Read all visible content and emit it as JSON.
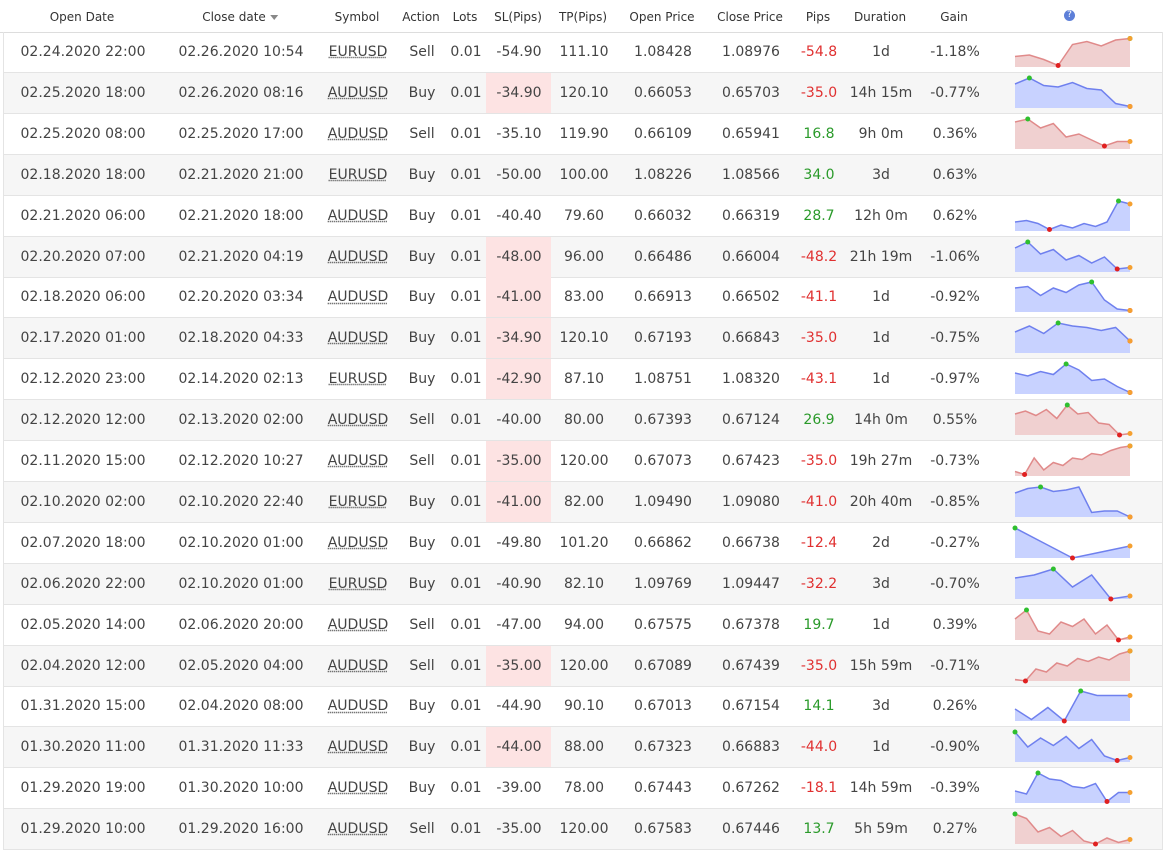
{
  "table": {
    "headers": [
      "Open Date",
      "Close date",
      "Symbol",
      "Action",
      "Lots",
      "SL(Pips)",
      "TP(Pips)",
      "Open Price",
      "Close Price",
      "Pips",
      "Duration",
      "Gain"
    ],
    "rows": [
      [
        "02.24.2020 22:00",
        "02.26.2020 10:54",
        "EURUSD",
        "Sell",
        "0.01",
        "-54.90",
        "111.10",
        "1.08428",
        "1.08976",
        "-54.8",
        "1d",
        "-1.18%"
      ],
      [
        "02.25.2020 18:00",
        "02.26.2020 08:16",
        "AUDUSD",
        "Buy",
        "0.01",
        "-34.90",
        "120.10",
        "0.66053",
        "0.65703",
        "-35.0",
        "14h 15m",
        "-0.77%"
      ],
      [
        "02.25.2020 08:00",
        "02.25.2020 17:00",
        "AUDUSD",
        "Sell",
        "0.01",
        "-35.10",
        "119.90",
        "0.66109",
        "0.65941",
        "16.8",
        "9h 0m",
        "0.36%"
      ],
      [
        "02.18.2020 18:00",
        "02.21.2020 21:00",
        "EURUSD",
        "Buy",
        "0.01",
        "-50.00",
        "100.00",
        "1.08226",
        "1.08566",
        "34.0",
        "3d",
        "0.63%"
      ],
      [
        "02.21.2020 06:00",
        "02.21.2020 18:00",
        "AUDUSD",
        "Buy",
        "0.01",
        "-40.40",
        "79.60",
        "0.66032",
        "0.66319",
        "28.7",
        "12h 0m",
        "0.62%"
      ],
      [
        "02.20.2020 07:00",
        "02.21.2020 04:19",
        "AUDUSD",
        "Buy",
        "0.01",
        "-48.00",
        "96.00",
        "0.66486",
        "0.66004",
        "-48.2",
        "21h 19m",
        "-1.06%"
      ],
      [
        "02.18.2020 06:00",
        "02.20.2020 03:34",
        "AUDUSD",
        "Buy",
        "0.01",
        "-41.00",
        "83.00",
        "0.66913",
        "0.66502",
        "-41.1",
        "1d",
        "-0.92%"
      ],
      [
        "02.17.2020 01:00",
        "02.18.2020 04:33",
        "AUDUSD",
        "Buy",
        "0.01",
        "-34.90",
        "120.10",
        "0.67193",
        "0.66843",
        "-35.0",
        "1d",
        "-0.75%"
      ],
      [
        "02.12.2020 23:00",
        "02.14.2020 02:13",
        "EURUSD",
        "Buy",
        "0.01",
        "-42.90",
        "87.10",
        "1.08751",
        "1.08320",
        "-43.1",
        "1d",
        "-0.97%"
      ],
      [
        "02.12.2020 12:00",
        "02.13.2020 02:00",
        "AUDUSD",
        "Sell",
        "0.01",
        "-40.00",
        "80.00",
        "0.67393",
        "0.67124",
        "26.9",
        "14h 0m",
        "0.55%"
      ],
      [
        "02.11.2020 15:00",
        "02.12.2020 10:27",
        "AUDUSD",
        "Sell",
        "0.01",
        "-35.00",
        "120.00",
        "0.67073",
        "0.67423",
        "-35.0",
        "19h 27m",
        "-0.73%"
      ],
      [
        "02.10.2020 02:00",
        "02.10.2020 22:40",
        "EURUSD",
        "Buy",
        "0.01",
        "-41.00",
        "82.00",
        "1.09490",
        "1.09080",
        "-41.0",
        "20h 40m",
        "-0.85%"
      ],
      [
        "02.07.2020 18:00",
        "02.10.2020 01:00",
        "AUDUSD",
        "Buy",
        "0.01",
        "-49.80",
        "101.20",
        "0.66862",
        "0.66738",
        "-12.4",
        "2d",
        "-0.27%"
      ],
      [
        "02.06.2020 22:00",
        "02.10.2020 01:00",
        "EURUSD",
        "Buy",
        "0.01",
        "-40.90",
        "82.10",
        "1.09769",
        "1.09447",
        "-32.2",
        "3d",
        "-0.70%"
      ],
      [
        "02.05.2020 14:00",
        "02.06.2020 20:00",
        "AUDUSD",
        "Sell",
        "0.01",
        "-47.00",
        "94.00",
        "0.67575",
        "0.67378",
        "19.7",
        "1d",
        "0.39%"
      ],
      [
        "02.04.2020 12:00",
        "02.05.2020 04:00",
        "AUDUSD",
        "Sell",
        "0.01",
        "-35.00",
        "120.00",
        "0.67089",
        "0.67439",
        "-35.0",
        "15h 59m",
        "-0.71%"
      ],
      [
        "01.31.2020 15:00",
        "02.04.2020 08:00",
        "AUDUSD",
        "Buy",
        "0.01",
        "-44.90",
        "90.10",
        "0.67013",
        "0.67154",
        "14.1",
        "3d",
        "0.26%"
      ],
      [
        "01.30.2020 11:00",
        "01.31.2020 11:33",
        "AUDUSD",
        "Buy",
        "0.01",
        "-44.00",
        "88.00",
        "0.67323",
        "0.66883",
        "-44.0",
        "1d",
        "-0.90%"
      ],
      [
        "01.29.2020 19:00",
        "01.30.2020 10:00",
        "AUDUSD",
        "Buy",
        "0.01",
        "-39.00",
        "78.00",
        "0.67443",
        "0.67262",
        "-18.1",
        "14h 59m",
        "-0.39%"
      ],
      [
        "01.29.2020 10:00",
        "01.29.2020 16:00",
        "AUDUSD",
        "Sell",
        "0.01",
        "-35.00",
        "120.00",
        "0.67583",
        "0.67446",
        "13.7",
        "5h 59m",
        "0.27%"
      ]
    ],
    "sl_highlight_rows": [
      1,
      5,
      6,
      7,
      8,
      10,
      11,
      15,
      17
    ],
    "sl_highlight_color": "#fde3e3",
    "positive_color": "#2a9a2a",
    "negative_color": "#e03030",
    "spark_ylim": [
      0,
      100
    ],
    "sparklines": [
      {
        "color": "#e08a8a",
        "fill": "#f0d0d0",
        "values": [
          35,
          40,
          25,
          5,
          75,
          85,
          70,
          90,
          95
        ]
      },
      {
        "color": "#6f80ee",
        "fill": "#c8d2ff",
        "values": [
          80,
          100,
          75,
          70,
          85,
          65,
          60,
          15,
          5
        ]
      },
      {
        "color": "#e08a8a",
        "fill": "#f0d0d0",
        "values": [
          90,
          100,
          70,
          85,
          40,
          50,
          30,
          10,
          25,
          25
        ]
      },
      null,
      {
        "color": "#6f80ee",
        "fill": "#c8d2ff",
        "values": [
          30,
          35,
          25,
          5,
          20,
          10,
          25,
          15,
          30,
          100,
          90
        ]
      },
      {
        "color": "#6f80ee",
        "fill": "#c8d2ff",
        "values": [
          80,
          100,
          60,
          75,
          40,
          55,
          30,
          50,
          10,
          15
        ]
      },
      {
        "color": "#6f80ee",
        "fill": "#c8d2ff",
        "values": [
          80,
          85,
          55,
          80,
          65,
          90,
          100,
          40,
          10,
          5
        ]
      },
      {
        "color": "#6f80ee",
        "fill": "#c8d2ff",
        "values": [
          70,
          90,
          65,
          100,
          90,
          85,
          75,
          85,
          40
        ]
      },
      {
        "color": "#6f80ee",
        "fill": "#c8d2ff",
        "values": [
          70,
          60,
          75,
          65,
          100,
          80,
          45,
          50,
          25,
          5
        ]
      },
      {
        "color": "#e08a8a",
        "fill": "#f0d0d0",
        "values": [
          70,
          80,
          65,
          85,
          55,
          100,
          70,
          75,
          40,
          35,
          0,
          5
        ]
      },
      {
        "color": "#e08a8a",
        "fill": "#f0d0d0",
        "values": [
          15,
          5,
          60,
          20,
          45,
          35,
          60,
          55,
          75,
          70,
          85,
          95,
          100
        ]
      },
      {
        "color": "#6f80ee",
        "fill": "#c8d2ff",
        "values": [
          80,
          95,
          100,
          85,
          90,
          100,
          15,
          20,
          20,
          0
        ]
      },
      {
        "color": "#6f80ee",
        "fill": "#c8d2ff",
        "values": [
          100,
          50,
          0,
          20,
          40
        ]
      },
      {
        "color": "#6f80ee",
        "fill": "#c8d2ff",
        "values": [
          70,
          80,
          100,
          40,
          80,
          0,
          10
        ]
      },
      {
        "color": "#e08a8a",
        "fill": "#f0d0d0",
        "values": [
          70,
          100,
          30,
          20,
          60,
          45,
          70,
          20,
          50,
          0,
          10
        ]
      },
      {
        "color": "#e08a8a",
        "fill": "#f0d0d0",
        "values": [
          5,
          0,
          40,
          30,
          60,
          50,
          75,
          65,
          80,
          70,
          90,
          100
        ]
      },
      {
        "color": "#6f80ee",
        "fill": "#c8d2ff",
        "values": [
          40,
          5,
          45,
          0,
          100,
          85,
          85,
          85
        ]
      },
      {
        "color": "#6f80ee",
        "fill": "#c8d2ff",
        "values": [
          100,
          50,
          80,
          55,
          85,
          45,
          75,
          20,
          5,
          15
        ]
      },
      {
        "color": "#6f80ee",
        "fill": "#c8d2ff",
        "values": [
          40,
          30,
          100,
          80,
          75,
          55,
          50,
          65,
          5,
          35,
          35
        ]
      },
      {
        "color": "#e08a8a",
        "fill": "#f0d0d0",
        "values": [
          100,
          85,
          40,
          55,
          25,
          45,
          10,
          0,
          20,
          5,
          15
        ]
      }
    ]
  }
}
